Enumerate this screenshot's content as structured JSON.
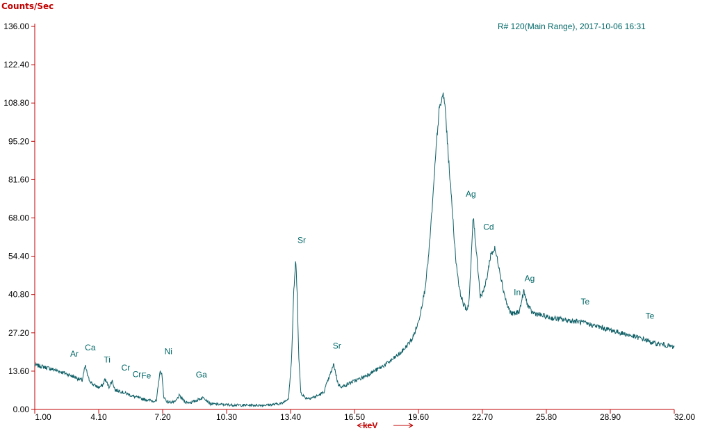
{
  "chart_data": {
    "type": "line",
    "title": "",
    "run_label": "R# 120(Main Range), 2017-10-06 16:31",
    "ylabel": "Counts/Sec",
    "xlabel": "keV",
    "xlim": [
      1.0,
      32.0
    ],
    "ylim": [
      0.0,
      136.0
    ],
    "x_ticks": [
      "1.00",
      "4.10",
      "7.20",
      "10.30",
      "13.40",
      "16.50",
      "19.60",
      "22.70",
      "25.80",
      "28.90",
      "32.00"
    ],
    "y_ticks": [
      "0.00",
      "13.60",
      "27.20",
      "40.80",
      "54.40",
      "68.00",
      "81.60",
      "95.20",
      "108.80",
      "122.40",
      "136.00"
    ],
    "grid": false,
    "colors": {
      "axis": "#c00000",
      "series": "#0e5f66",
      "label": "#006666"
    },
    "series": [
      {
        "x": [
          1.0,
          1.5,
          2.0,
          2.5,
          3.0,
          3.3,
          3.45,
          3.6,
          3.8,
          4.1,
          4.3,
          4.4,
          4.6,
          4.75,
          4.9,
          5.1,
          5.3,
          5.5,
          5.75,
          6.0,
          6.3,
          6.6,
          6.9,
          7.05,
          7.15,
          7.25,
          7.4,
          7.6,
          7.8,
          8.0,
          8.3,
          8.6,
          8.9,
          9.2,
          9.5,
          10.0,
          10.5,
          11.0,
          11.5,
          12.0,
          12.5,
          13.0,
          13.3,
          13.45,
          13.55,
          13.65,
          13.72,
          13.8,
          13.9,
          14.1,
          14.3,
          14.6,
          15.0,
          15.3,
          15.5,
          15.7,
          15.9,
          16.3,
          16.8,
          17.3,
          17.8,
          18.3,
          18.8,
          19.3,
          19.6,
          19.9,
          20.1,
          20.3,
          20.5,
          20.6,
          20.7,
          20.8,
          20.9,
          21.0,
          21.2,
          21.4,
          21.6,
          21.8,
          21.95,
          22.05,
          22.15,
          22.25,
          22.4,
          22.6,
          22.8,
          22.95,
          23.1,
          23.3,
          23.5,
          23.7,
          23.9,
          24.1,
          24.3,
          24.5,
          24.7,
          24.9,
          25.1,
          25.5,
          26.0,
          26.5,
          27.0,
          27.5,
          28.0,
          28.5,
          29.0,
          29.5,
          30.0,
          30.5,
          31.0,
          31.5,
          32.0
        ],
        "y": [
          15.8,
          15.0,
          14.0,
          12.8,
          11.3,
          10.3,
          15.5,
          11.0,
          9.0,
          7.8,
          8.6,
          10.8,
          8.0,
          10.3,
          6.8,
          6.6,
          6.0,
          5.5,
          4.7,
          4.2,
          3.6,
          3.2,
          2.9,
          12.8,
          13.4,
          4.6,
          2.8,
          2.6,
          2.6,
          4.9,
          2.6,
          2.5,
          3.4,
          4.3,
          2.0,
          1.8,
          1.6,
          1.5,
          1.5,
          1.5,
          1.7,
          2.2,
          4.0,
          18.0,
          41.0,
          53.0,
          42.0,
          18.0,
          6.0,
          4.2,
          4.0,
          4.5,
          6.0,
          12.0,
          16.0,
          9.0,
          8.0,
          9.5,
          11.0,
          13.0,
          15.0,
          17.5,
          20.5,
          25.0,
          31.0,
          42.0,
          55.0,
          75.0,
          97.0,
          106.0,
          109.0,
          112.0,
          107.0,
          95.0,
          75.0,
          54.0,
          42.0,
          37.0,
          35.5,
          38.0,
          52.0,
          69.0,
          57.0,
          40.0,
          43.0,
          48.0,
          55.0,
          57.0,
          51.0,
          43.0,
          37.0,
          34.0,
          34.0,
          35.0,
          42.0,
          37.0,
          34.5,
          33.5,
          32.5,
          32.0,
          31.5,
          31.0,
          30.0,
          29.0,
          28.0,
          27.0,
          26.0,
          25.0,
          23.5,
          23.0,
          22.0
        ]
      }
    ],
    "annotations": [
      {
        "text": "Ar",
        "x": 2.92,
        "y": 19.8
      },
      {
        "text": "Ca",
        "x": 3.69,
        "y": 22.0
      },
      {
        "text": "Ti",
        "x": 4.51,
        "y": 17.6
      },
      {
        "text": "Cr",
        "x": 5.41,
        "y": 14.8
      },
      {
        "text": "Cr",
        "x": 5.95,
        "y": 12.5
      },
      {
        "text": "Fe",
        "x": 6.4,
        "y": 12.0
      },
      {
        "text": "Ni",
        "x": 7.48,
        "y": 20.6
      },
      {
        "text": "Ga",
        "x": 9.08,
        "y": 12.3
      },
      {
        "text": "Sr",
        "x": 13.94,
        "y": 60.1
      },
      {
        "text": "Sr",
        "x": 15.65,
        "y": 22.6
      },
      {
        "text": "Ag",
        "x": 22.14,
        "y": 76.5
      },
      {
        "text": "Cd",
        "x": 23.0,
        "y": 64.8
      },
      {
        "text": "In",
        "x": 24.39,
        "y": 41.6
      },
      {
        "text": "Ag",
        "x": 24.99,
        "y": 46.5
      },
      {
        "text": "Te",
        "x": 27.68,
        "y": 38.2
      },
      {
        "text": "Te",
        "x": 30.82,
        "y": 33.2
      }
    ]
  }
}
